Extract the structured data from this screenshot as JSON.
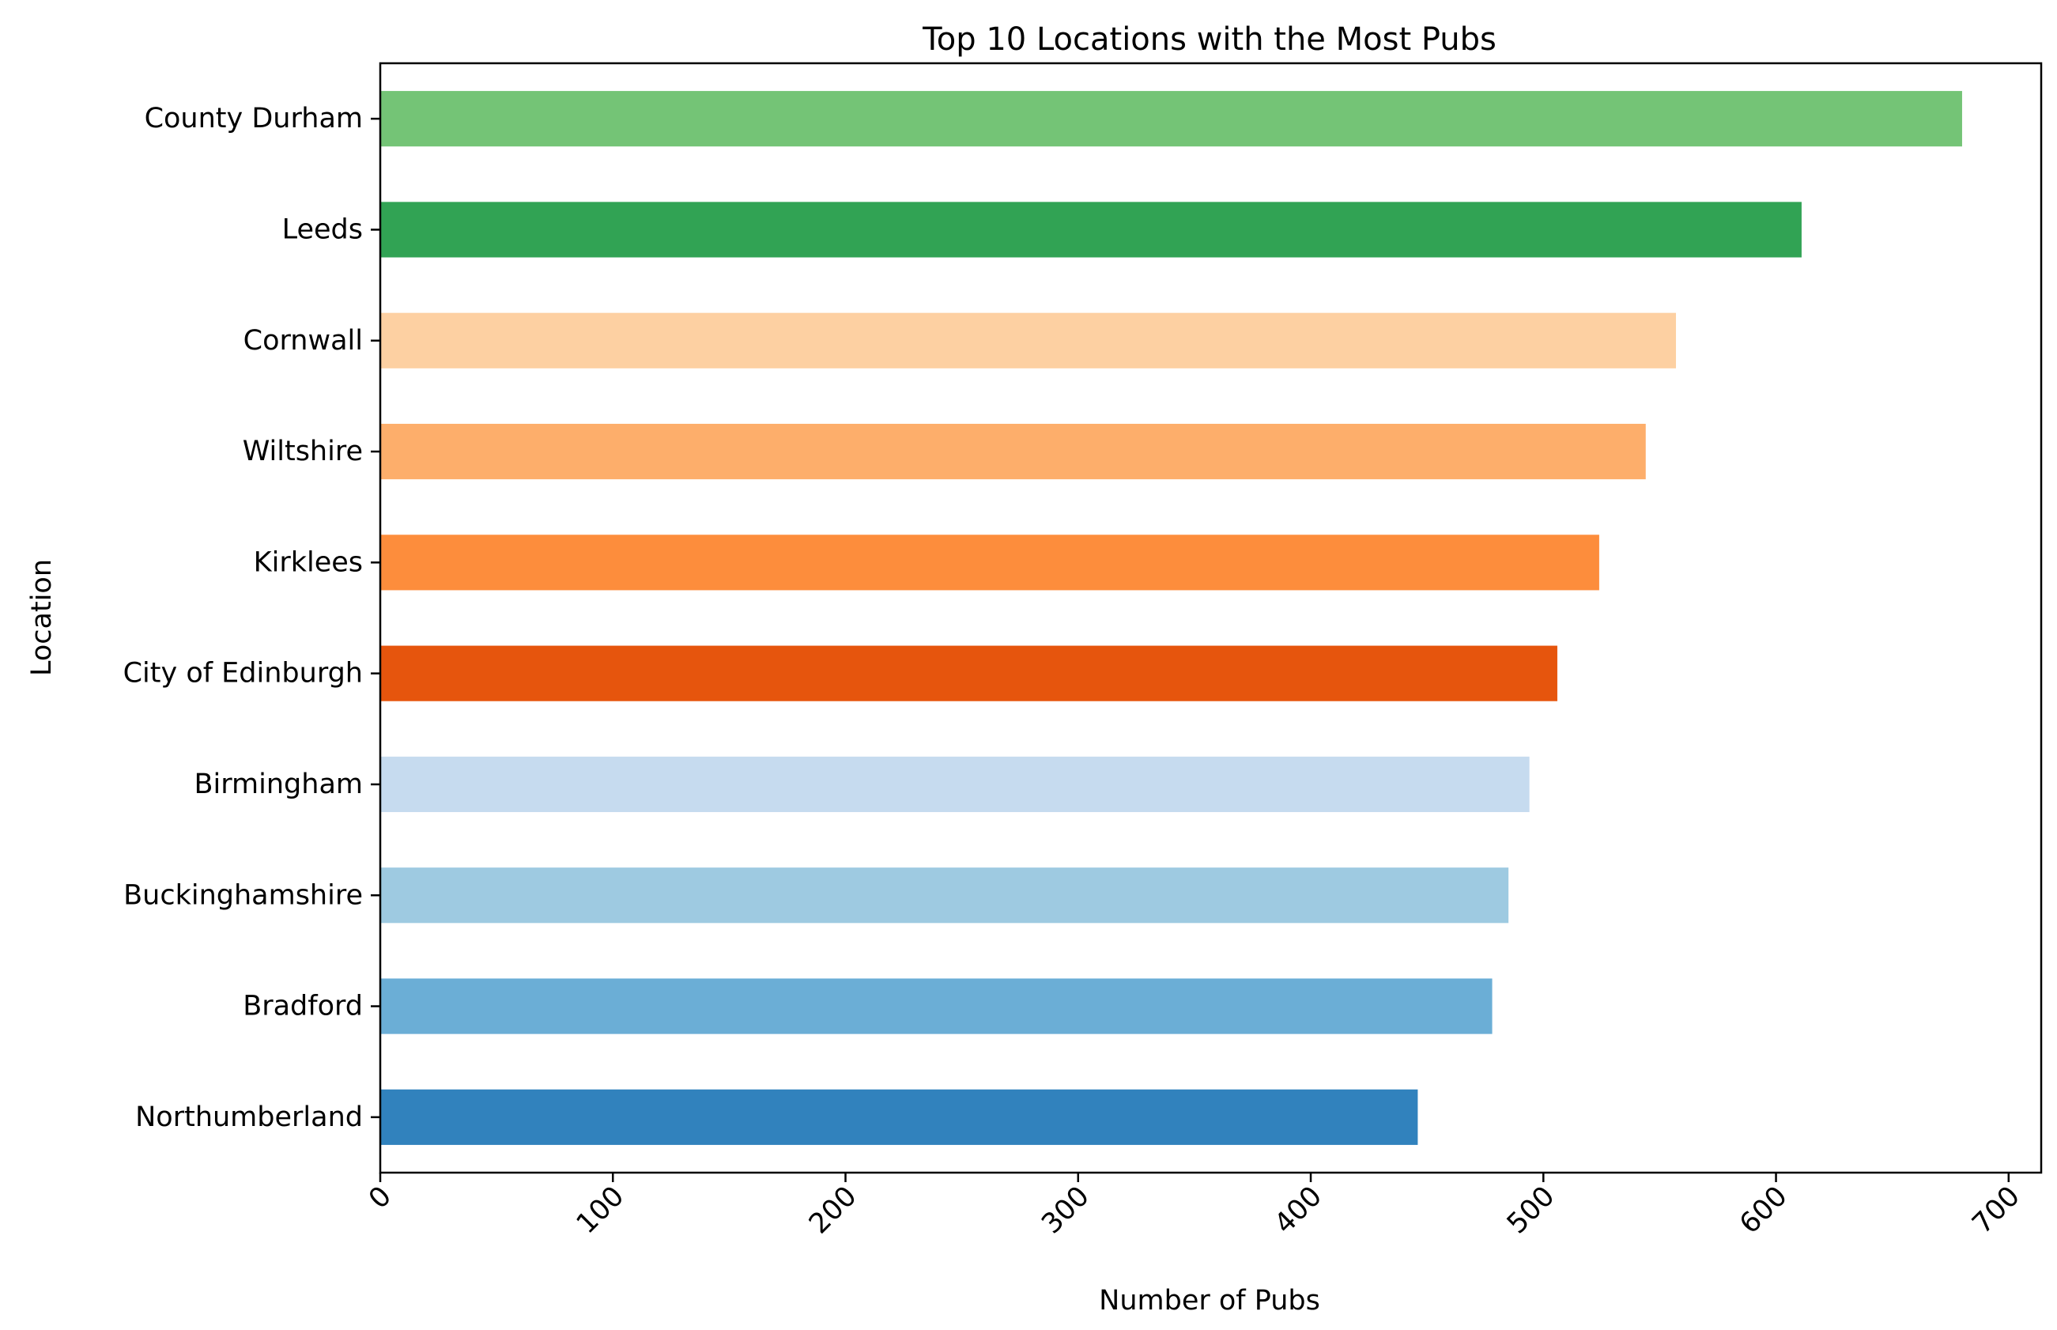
{
  "chart_data": {
    "type": "bar",
    "orientation": "horizontal",
    "title": "Top 10 Locations with the Most Pubs",
    "xlabel": "Number of Pubs",
    "ylabel": "Location",
    "categories": [
      "County Durham",
      "Leeds",
      "Cornwall",
      "Wiltshire",
      "Kirklees",
      "City of Edinburgh",
      "Birmingham",
      "Buckinghamshire",
      "Bradford",
      "Northumberland"
    ],
    "values": [
      680,
      611,
      557,
      544,
      524,
      506,
      494,
      485,
      478,
      446
    ],
    "colors": [
      "#74c476",
      "#31a354",
      "#fdd0a2",
      "#fdae6b",
      "#fd8d3c",
      "#e6550d",
      "#c6dbef",
      "#9ecae1",
      "#6baed6",
      "#3182bd"
    ],
    "xlim": [
      0,
      714
    ],
    "xticks": [
      0,
      100,
      200,
      300,
      400,
      500,
      600,
      700
    ],
    "xtick_labels": [
      "0",
      "100",
      "200",
      "300",
      "400",
      "500",
      "600",
      "700"
    ],
    "xtick_rotation": 45,
    "grid": false,
    "legend": "none"
  }
}
